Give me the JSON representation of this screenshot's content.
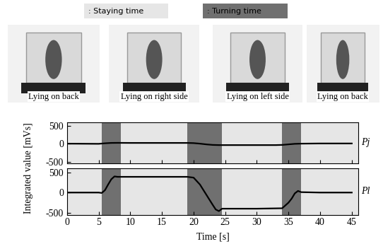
{
  "chart_data": [
    {
      "type": "line",
      "tick_labels": "y",
      "series": [
        {
          "name": "Pj",
          "color": "#000000",
          "x": [
            0,
            5,
            6,
            7,
            8,
            10,
            15,
            19,
            20,
            21,
            22,
            23,
            24,
            25,
            30,
            33,
            34,
            35,
            36,
            37,
            40,
            45
          ],
          "values": [
            0,
            -5,
            10,
            20,
            22,
            20,
            20,
            20,
            15,
            0,
            -20,
            -35,
            -40,
            -40,
            -40,
            -40,
            -35,
            -20,
            -5,
            0,
            5,
            5
          ]
        }
      ],
      "xlim": [
        0,
        46
      ],
      "xticks": [
        0,
        5,
        10,
        15,
        20,
        25,
        30,
        35,
        40,
        45
      ],
      "ylim": [
        -550,
        600
      ],
      "yticks": [
        -500,
        0,
        500
      ]
    },
    {
      "type": "line",
      "series": [
        {
          "name": "Pl",
          "color": "#000000",
          "x": [
            0,
            5,
            5.5,
            6,
            6.5,
            7,
            7.5,
            8,
            10,
            15,
            19,
            20,
            21,
            22,
            23,
            23.5,
            24,
            24.5,
            25,
            30,
            34,
            35,
            35.5,
            36,
            36.5,
            37,
            40,
            45
          ],
          "values": [
            0,
            0,
            -10,
            60,
            200,
            330,
            400,
            390,
            390,
            390,
            390,
            370,
            200,
            -50,
            -300,
            -420,
            -460,
            -400,
            -400,
            -400,
            -390,
            -250,
            -150,
            -20,
            40,
            10,
            0,
            0
          ]
        }
      ],
      "xlim": [
        0,
        46
      ],
      "xticks": [
        0,
        5,
        10,
        15,
        20,
        25,
        30,
        35,
        40,
        45
      ],
      "ylim": [
        -550,
        600
      ],
      "yticks": [
        -500,
        0,
        500
      ]
    }
  ],
  "figure": {
    "x_label": "Time [s]",
    "y_label": "Integrated value [mVs]",
    "legend": [
      {
        "label": ": Staying time",
        "color": "#e6e6e6"
      },
      {
        "label": ": Turning time",
        "color": "#707070"
      }
    ],
    "staying_periods": [
      [
        0,
        5.5
      ],
      [
        8.5,
        19
      ],
      [
        24.5,
        34
      ],
      [
        37,
        46
      ]
    ],
    "turning_periods": [
      [
        5.5,
        8.5
      ],
      [
        19,
        24.5
      ],
      [
        34,
        37
      ]
    ],
    "photos": [
      "Lying on back",
      "Lying on right side",
      "Lying on left side",
      "Lying on back"
    ]
  }
}
